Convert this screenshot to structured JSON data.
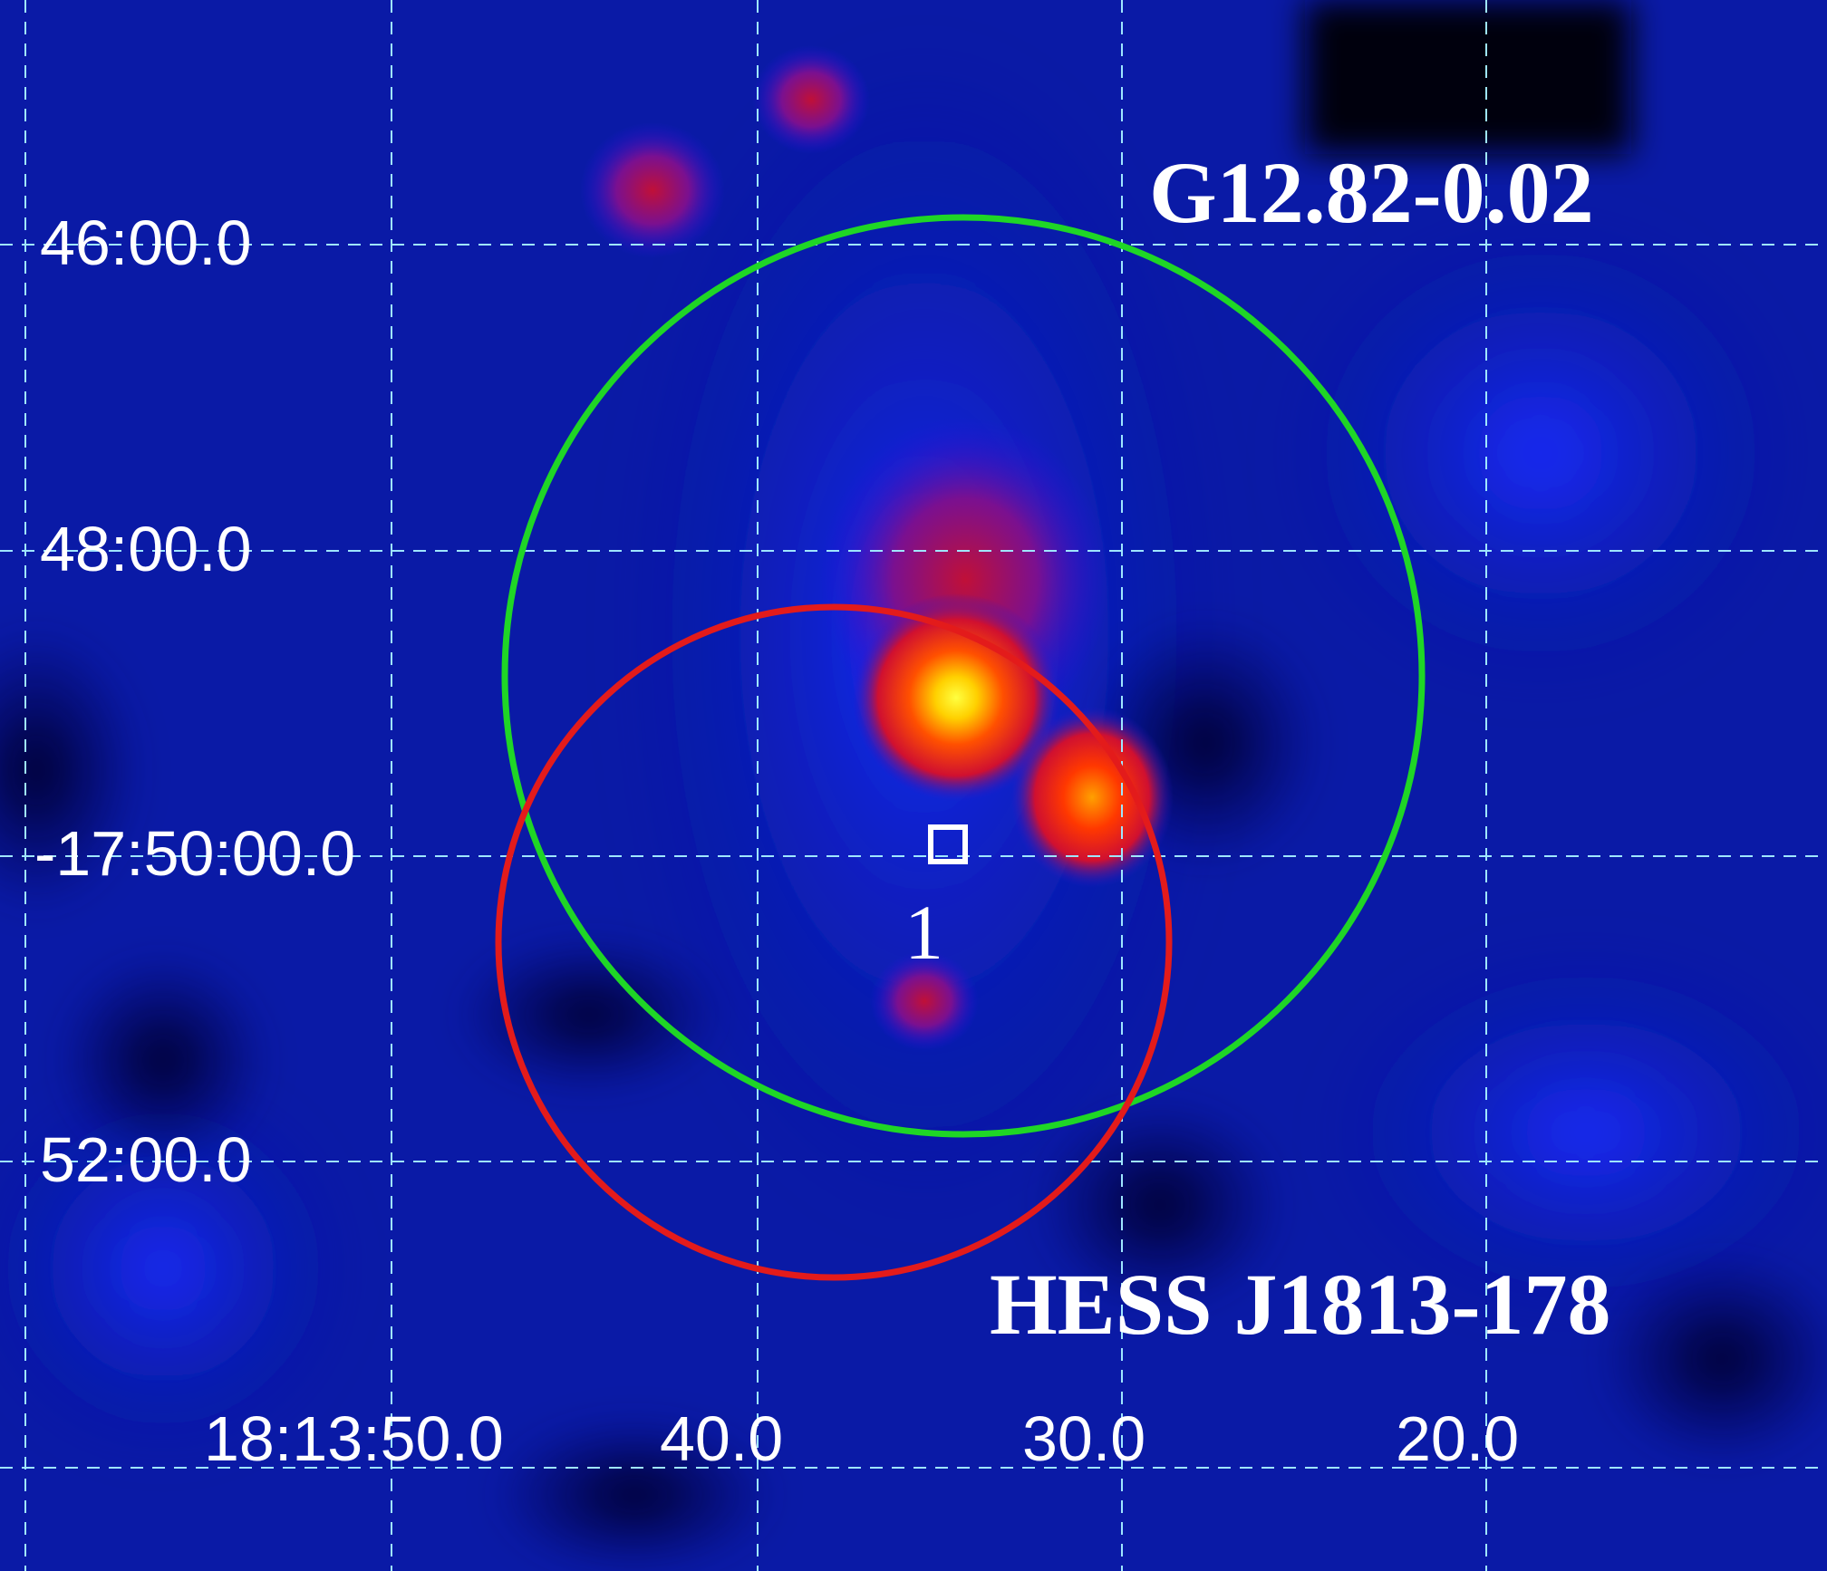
{
  "colors": {
    "background": "#0a1aa6",
    "grid": "#9fe6ff",
    "snr_circle": "#1fd626",
    "hess_circle": "#e31b1b",
    "marker": "#ffffff",
    "text": "#ffffff"
  },
  "colormap": "blue-red-yellow heat",
  "grid": {
    "style": "dashed",
    "ra_labels": [
      "18:13:50.0",
      "40.0",
      "30.0",
      "20.0"
    ],
    "dec_labels": [
      "46:00.0",
      "48:00.0",
      "-17:50:00.0",
      "52:00.0"
    ]
  },
  "regions": {
    "snr": {
      "label": "G12.82-0.02",
      "color_name": "green circle"
    },
    "hess": {
      "label": "HESS J1813-178",
      "color_name": "red circle"
    }
  },
  "marker": {
    "label": "1",
    "shape": "open square"
  }
}
